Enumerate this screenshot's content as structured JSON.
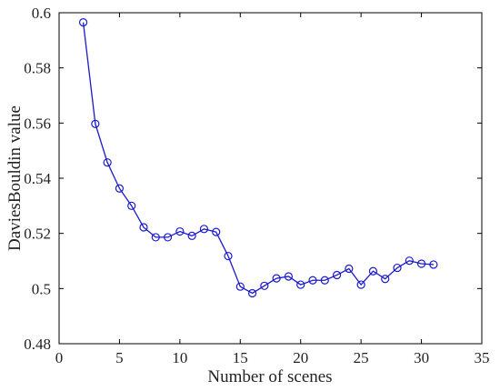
{
  "chart_data": {
    "type": "line",
    "title": "",
    "xlabel": "Number of scenes",
    "ylabel": "DaviesBouldin  value",
    "xlim": [
      0,
      35
    ],
    "ylim": [
      0.48,
      0.6
    ],
    "xticks": [
      0,
      5,
      10,
      15,
      20,
      25,
      30,
      35
    ],
    "xtick_labels": [
      "0",
      "5",
      "10",
      "15",
      "20",
      "25",
      "30",
      "35"
    ],
    "yticks": [
      0.48,
      0.5,
      0.52,
      0.54,
      0.56,
      0.58,
      0.6
    ],
    "ytick_labels": [
      "0.48",
      "0.5",
      "0.52",
      "0.54",
      "0.56",
      "0.58",
      "0.6"
    ],
    "grid": false,
    "marker": "circle-open",
    "line_color": "#1a1acc",
    "series": [
      {
        "x": [
          2,
          3,
          4,
          5,
          6,
          7,
          8,
          9,
          10,
          11,
          12,
          13,
          14,
          15,
          16,
          17,
          18,
          19,
          20,
          21,
          22,
          23,
          24,
          25,
          26,
          27,
          28,
          29,
          30,
          31
        ],
        "y": [
          0.5965,
          0.5597,
          0.5457,
          0.5363,
          0.53,
          0.5222,
          0.5186,
          0.5186,
          0.5207,
          0.5191,
          0.5216,
          0.5205,
          0.5118,
          0.5007,
          0.4983,
          0.501,
          0.5037,
          0.5044,
          0.5014,
          0.503,
          0.503,
          0.5049,
          0.5072,
          0.5014,
          0.5063,
          0.5035,
          0.5075,
          0.5101,
          0.509,
          0.5087
        ]
      }
    ]
  }
}
